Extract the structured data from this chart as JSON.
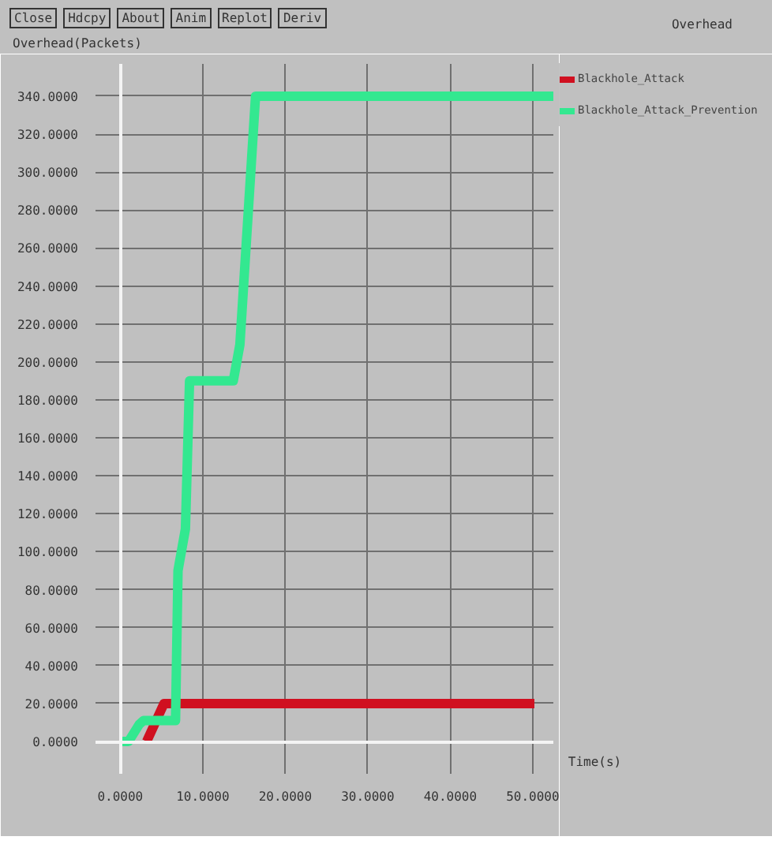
{
  "chart_data": {
    "type": "line",
    "title": "Overhead",
    "xlabel": "Time(s)",
    "ylabel": "Overhead(Packets)",
    "annotations": [
      "Close",
      "Hdcpy",
      "About",
      "Anim",
      "Replot",
      "Deriv"
    ],
    "series": [
      {
        "name": "Blackhole_Attack",
        "color": "#d01020",
        "x": [
          3.2,
          5.3,
          50.2
        ],
        "values": [
          0,
          20,
          20
        ]
      },
      {
        "name": "Blackhole_Attack_Prevention",
        "color": "#33e890",
        "x": [
          0,
          1.0,
          2.3,
          2.8,
          6.7,
          7.0,
          7.2,
          7.9,
          8.4,
          13.7,
          14.5,
          16.4,
          52.5
        ],
        "values": [
          0,
          0,
          9,
          11,
          11,
          90,
          95,
          112,
          190,
          190,
          209,
          340,
          340
        ]
      }
    ],
    "xlim": [
      -3,
      52.5
    ],
    "ylim": [
      -17,
      357
    ],
    "xticks": [
      {
        "value": 0,
        "label": "0.0000"
      },
      {
        "value": 10,
        "label": "10.0000"
      },
      {
        "value": 20,
        "label": "20.0000"
      },
      {
        "value": 30,
        "label": "30.0000"
      },
      {
        "value": 40,
        "label": "40.0000"
      },
      {
        "value": 50,
        "label": "50.0000"
      }
    ],
    "yticks": [
      {
        "value": 0,
        "label": "0.0000"
      },
      {
        "value": 20,
        "label": "20.0000"
      },
      {
        "value": 40,
        "label": "40.0000"
      },
      {
        "value": 60,
        "label": "60.0000"
      },
      {
        "value": 80,
        "label": "80.0000"
      },
      {
        "value": 100,
        "label": "100.0000"
      },
      {
        "value": 120,
        "label": "120.0000"
      },
      {
        "value": 140,
        "label": "140.0000"
      },
      {
        "value": 160,
        "label": "160.0000"
      },
      {
        "value": 180,
        "label": "180.0000"
      },
      {
        "value": 200,
        "label": "200.0000"
      },
      {
        "value": 220,
        "label": "220.0000"
      },
      {
        "value": 240,
        "label": "240.0000"
      },
      {
        "value": 260,
        "label": "260.0000"
      },
      {
        "value": 280,
        "label": "280.0000"
      },
      {
        "value": 300,
        "label": "300.0000"
      },
      {
        "value": 320,
        "label": "320.0000"
      },
      {
        "value": 340,
        "label": "340.0000"
      }
    ],
    "grid": true,
    "legend": "top right",
    "line_style": "solid",
    "marker": "none"
  }
}
